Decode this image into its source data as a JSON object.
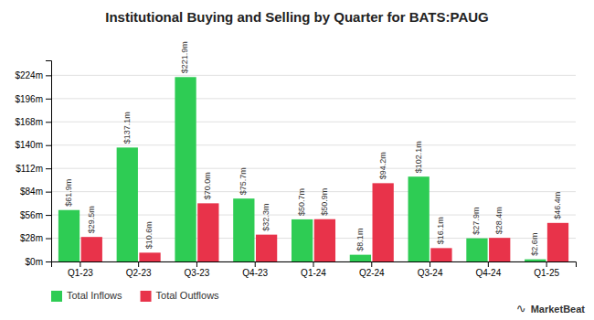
{
  "chart_data": {
    "type": "bar",
    "title": "Institutional Buying and Selling by Quarter for BATS:PAUG",
    "categories": [
      "Q1-23",
      "Q2-23",
      "Q3-23",
      "Q4-23",
      "Q1-24",
      "Q2-24",
      "Q3-24",
      "Q4-24",
      "Q1-25"
    ],
    "series": [
      {
        "name": "Total Inflows",
        "color": "#2ecc54",
        "values": [
          61.9,
          137.1,
          221.9,
          75.7,
          50.7,
          8.1,
          102.1,
          27.9,
          2.6
        ],
        "value_labels": [
          "$61.9m",
          "$137.1m",
          "$221.9m",
          "$75.7m",
          "$50.7m",
          "$8.1m",
          "$102.1m",
          "$27.9m",
          "$2.6m"
        ]
      },
      {
        "name": "Total Outflows",
        "color": "#e8334a",
        "values": [
          29.5,
          10.6,
          70.0,
          32.3,
          50.9,
          94.2,
          16.1,
          28.4,
          46.4
        ],
        "value_labels": [
          "$29.5m",
          "$10.6m",
          "$70.0m",
          "$32.3m",
          "$50.9m",
          "$94.2m",
          "$16.1m",
          "$28.4m",
          "$46.4m"
        ]
      }
    ],
    "ylim": [
      0,
      242
    ],
    "yticks": [
      {
        "value": 0,
        "label": "$0m"
      },
      {
        "value": 28,
        "label": "$28m"
      },
      {
        "value": 56,
        "label": "$56m"
      },
      {
        "value": 84,
        "label": "$84m"
      },
      {
        "value": 112,
        "label": "$112m"
      },
      {
        "value": 140,
        "label": "$140m"
      },
      {
        "value": 168,
        "label": "$168m"
      },
      {
        "value": 196,
        "label": "$196m"
      },
      {
        "value": 224,
        "label": "$224m"
      }
    ],
    "grid": true,
    "data_labels": true,
    "legend": "bottom",
    "annotations": [
      "∿",
      "MarketBeat"
    ]
  }
}
